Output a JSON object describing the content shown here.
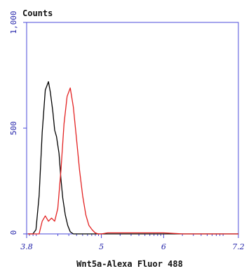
{
  "chart_data": {
    "type": "line",
    "ylabel": "Counts",
    "xlabel": "Wnt5a-Alexa Fluor 488",
    "x_scale": "log",
    "xlim": [
      3.8,
      7.2
    ],
    "ylim": [
      0,
      1000
    ],
    "x_ticks": [
      {
        "value": 3.8,
        "label": "3.8"
      },
      {
        "value": 5,
        "label": "5"
      },
      {
        "value": 6,
        "label": "6"
      },
      {
        "value": 7.2,
        "label": "7.2"
      }
    ],
    "y_ticks": [
      {
        "value": 0,
        "label": "0"
      },
      {
        "value": 500,
        "label": "500"
      },
      {
        "value": 1000,
        "label": "1,000"
      }
    ],
    "series": [
      {
        "color": "#000000",
        "x": [
          3.82,
          3.9,
          3.95,
          4.0,
          4.05,
          4.1,
          4.15,
          4.18,
          4.22,
          4.25,
          4.28,
          4.32,
          4.35,
          4.38,
          4.42,
          4.46,
          4.5,
          4.55,
          4.6,
          4.7,
          4.8,
          4.9,
          5.0,
          6.0,
          7.2
        ],
        "values": [
          0,
          0,
          20,
          180,
          480,
          680,
          720,
          670,
          580,
          490,
          460,
          380,
          260,
          170,
          90,
          40,
          10,
          0,
          0,
          0,
          0,
          0,
          0,
          0,
          0
        ]
      },
      {
        "color": "#e32222",
        "x": [
          3.82,
          4.0,
          4.05,
          4.1,
          4.15,
          4.2,
          4.25,
          4.3,
          4.35,
          4.4,
          4.45,
          4.5,
          4.55,
          4.6,
          4.65,
          4.7,
          4.75,
          4.8,
          4.85,
          4.9,
          4.95,
          5.0,
          5.1,
          5.4,
          5.7,
          6.0,
          6.3,
          7.2
        ],
        "values": [
          0,
          0,
          60,
          85,
          60,
          75,
          60,
          120,
          300,
          520,
          650,
          690,
          600,
          450,
          300,
          180,
          90,
          40,
          20,
          5,
          0,
          0,
          5,
          5,
          5,
          5,
          0,
          0
        ]
      }
    ],
    "colors": {
      "axis": "#4a4ad8",
      "tick_text": "#1f1fa8"
    }
  }
}
